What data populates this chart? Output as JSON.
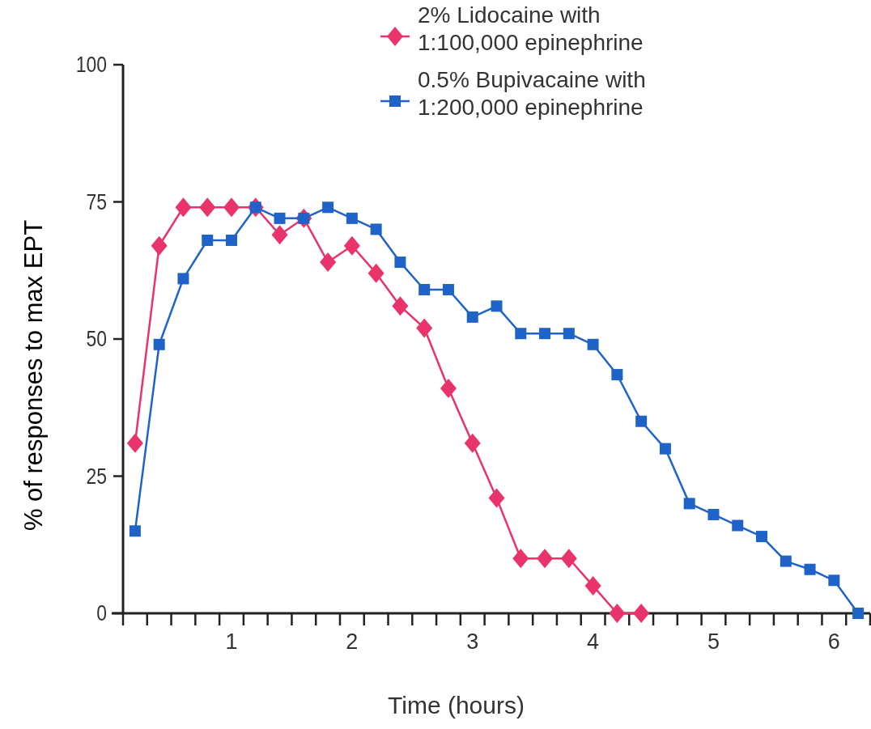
{
  "chart_data": {
    "type": "line",
    "xlabel": "Time (hours)",
    "ylabel": "% of responses to max EPT",
    "xlim": [
      0.1,
      6.3
    ],
    "ylim": [
      0,
      100
    ],
    "yticks": [
      0,
      25,
      50,
      75,
      100
    ],
    "xticks": [
      {
        "value": 0.1,
        "label": null
      },
      {
        "value": 0.3,
        "label": null
      },
      {
        "value": 0.5,
        "label": null
      },
      {
        "value": 0.7,
        "label": null
      },
      {
        "value": 0.9,
        "label": null
      },
      1,
      {
        "value": 1.1,
        "label": null
      },
      {
        "value": 1.3,
        "label": null
      },
      {
        "value": 1.5,
        "label": null
      },
      {
        "value": 1.7,
        "label": null
      },
      {
        "value": 1.9,
        "label": null
      },
      2,
      {
        "value": 2.1,
        "label": null
      },
      {
        "value": 2.3,
        "label": null
      },
      {
        "value": 2.5,
        "label": null
      },
      {
        "value": 2.7,
        "label": null
      },
      {
        "value": 2.9,
        "label": null
      },
      3,
      {
        "value": 3.1,
        "label": null
      },
      {
        "value": 3.3,
        "label": null
      },
      {
        "value": 3.5,
        "label": null
      },
      {
        "value": 3.7,
        "label": null
      },
      {
        "value": 3.9,
        "label": null
      },
      4,
      {
        "value": 4.1,
        "label": null
      },
      {
        "value": 4.3,
        "label": null
      },
      {
        "value": 4.5,
        "label": null
      },
      {
        "value": 4.7,
        "label": null
      },
      {
        "value": 4.9,
        "label": null
      },
      5,
      {
        "value": 5.1,
        "label": null
      },
      {
        "value": 5.3,
        "label": null
      },
      {
        "value": 5.5,
        "label": null
      },
      {
        "value": 5.7,
        "label": null
      },
      {
        "value": 5.9,
        "label": null
      },
      6,
      {
        "value": 6.1,
        "label": null
      },
      {
        "value": 6.3,
        "label": null
      }
    ],
    "legend": "top right",
    "line_style": "solid",
    "series": [
      {
        "name": "2% Lidocaine with 1:100,000 epinephrine",
        "color": "#e8336b",
        "marker": "diamond",
        "x": [
          0.2,
          0.4,
          0.6,
          0.8,
          1.0,
          1.2,
          1.4,
          1.6,
          1.8,
          2.0,
          2.2,
          2.4,
          2.6,
          2.8,
          3.0,
          3.2,
          3.4,
          3.6,
          3.8,
          4.0,
          4.2,
          4.4
        ],
        "values": [
          31,
          67,
          74,
          74,
          74,
          74,
          69,
          72,
          64,
          67,
          62,
          56,
          52,
          41,
          31,
          21,
          10,
          10,
          10,
          5,
          0,
          0
        ]
      },
      {
        "name": "0.5% Bupivacaine with 1:200,000 epinephrine",
        "color": "#1f63c8",
        "marker": "square",
        "x": [
          0.2,
          0.4,
          0.6,
          0.8,
          1.0,
          1.2,
          1.4,
          1.6,
          1.8,
          2.0,
          2.2,
          2.4,
          2.6,
          2.8,
          3.0,
          3.2,
          3.4,
          3.6,
          3.8,
          4.0,
          4.2,
          4.4,
          4.6,
          4.8,
          5.0,
          5.2,
          5.4,
          5.6,
          5.8,
          6.0,
          6.2
        ],
        "values": [
          15,
          49,
          61,
          68,
          68,
          74,
          72,
          72,
          74,
          72,
          70,
          64,
          59,
          59,
          54,
          56,
          51,
          51,
          51,
          49,
          43.5,
          35,
          30,
          20,
          18,
          16,
          14,
          9.5,
          8,
          6,
          0
        ]
      }
    ]
  }
}
